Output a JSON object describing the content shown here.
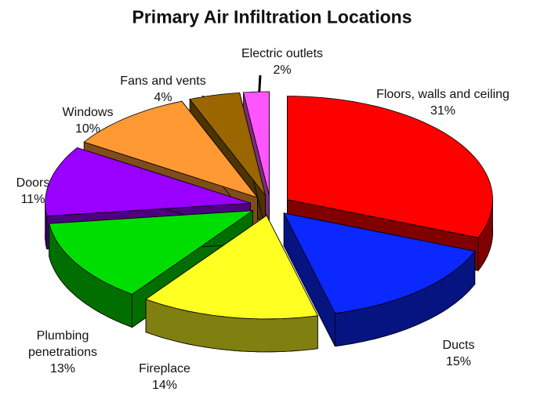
{
  "chart_data": {
    "type": "pie",
    "title": "Primary Air Infiltration Locations",
    "categories": [
      "Floors, walls and ceiling",
      "Ducts",
      "Fireplace",
      "Plumbing penetrations",
      "Doors",
      "Windows",
      "Fans and vents",
      "Electric outlets"
    ],
    "values": [
      31,
      15,
      14,
      13,
      11,
      10,
      4,
      2
    ],
    "value_labels": [
      "31%",
      "15%",
      "14%",
      "13%",
      "11%",
      "10%",
      "4%",
      "2%"
    ],
    "colors": [
      "#ff0000",
      "#0a28ff",
      "#ffff22",
      "#00dd00",
      "#9900ff",
      "#ff9933",
      "#996600",
      "#ff55ff"
    ]
  }
}
